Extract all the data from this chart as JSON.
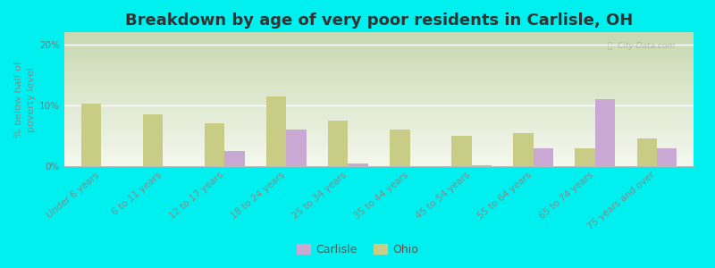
{
  "title": "Breakdown by age of very poor residents in Carlisle, OH",
  "ylabel": "% below half of\npoverty level",
  "categories": [
    "Under 6 years",
    "6 to 11 years",
    "12 to 17 years",
    "18 to 24 years",
    "25 to 34 years",
    "35 to 44 years",
    "45 to 54 years",
    "55 to 64 years",
    "65 to 74 years",
    "75 years and over"
  ],
  "carlisle_values": [
    0,
    0,
    2.5,
    6.0,
    0.5,
    0,
    0.2,
    3.0,
    11.0,
    3.0
  ],
  "ohio_values": [
    10.2,
    8.5,
    7.0,
    11.5,
    7.5,
    6.0,
    5.0,
    5.5,
    3.0,
    4.5
  ],
  "carlisle_color": "#c9a8d4",
  "ohio_color": "#c8cc84",
  "background_color": "#00f0f0",
  "plot_bg_top": "#c8d8b0",
  "plot_bg_bottom": "#f0f4e8",
  "ylim": [
    0,
    22
  ],
  "yticks": [
    0,
    10,
    20
  ],
  "ytick_labels": [
    "0%",
    "10%",
    "20%"
  ],
  "bar_width": 0.32,
  "title_fontsize": 13,
  "axis_label_fontsize": 8,
  "tick_fontsize": 7.5,
  "legend_fontsize": 9,
  "watermark": "ⓘ  City-Data.com"
}
